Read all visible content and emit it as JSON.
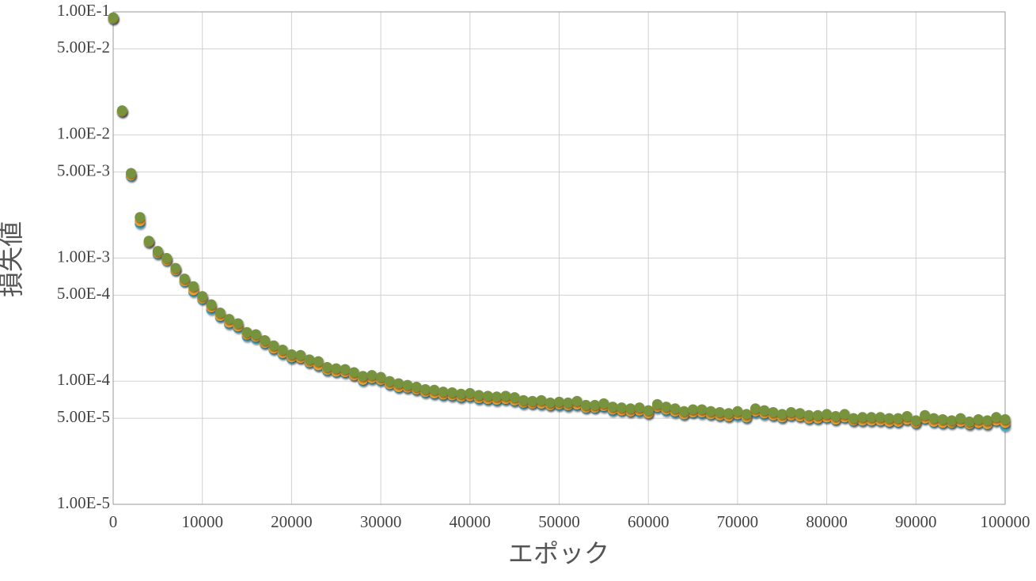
{
  "chart_data": {
    "type": "scatter",
    "xlabel": "エポック",
    "ylabel": "損失値",
    "log_y": true,
    "grid": true,
    "xlim": [
      0,
      100000
    ],
    "xticks": [
      0,
      10000,
      20000,
      30000,
      40000,
      50000,
      60000,
      70000,
      80000,
      90000,
      100000
    ],
    "ylim": [
      1e-05,
      0.1
    ],
    "yticks": [
      {
        "value": 0.1,
        "label": "1.00E-1"
      },
      {
        "value": 0.05,
        "label": "5.00E-2"
      },
      {
        "value": 0.01,
        "label": "1.00E-2"
      },
      {
        "value": 0.005,
        "label": "5.00E-3"
      },
      {
        "value": 0.001,
        "label": "1.00E-3"
      },
      {
        "value": 0.0005,
        "label": "5.00E-4"
      },
      {
        "value": 0.0001,
        "label": "1.00E-4"
      },
      {
        "value": 5e-05,
        "label": "5.00E-5"
      },
      {
        "value": 1e-05,
        "label": "1.00E-5"
      }
    ],
    "x": [
      0,
      1000,
      2000,
      3000,
      4000,
      5000,
      6000,
      7000,
      8000,
      9000,
      10000,
      11000,
      12000,
      13000,
      14000,
      15000,
      16000,
      17000,
      18000,
      19000,
      20000,
      21000,
      22000,
      23000,
      24000,
      25000,
      26000,
      27000,
      28000,
      29000,
      30000,
      31000,
      32000,
      33000,
      34000,
      35000,
      36000,
      37000,
      38000,
      39000,
      40000,
      41000,
      42000,
      43000,
      44000,
      45000,
      46000,
      47000,
      48000,
      49000,
      50000,
      51000,
      52000,
      53000,
      54000,
      55000,
      56000,
      57000,
      58000,
      59000,
      60000,
      61000,
      62000,
      63000,
      64000,
      65000,
      66000,
      67000,
      68000,
      69000,
      70000,
      71000,
      72000,
      73000,
      74000,
      75000,
      76000,
      77000,
      78000,
      79000,
      80000,
      81000,
      82000,
      83000,
      84000,
      85000,
      86000,
      87000,
      88000,
      89000,
      90000,
      91000,
      92000,
      93000,
      94000,
      95000,
      96000,
      97000,
      98000,
      99000,
      100000
    ],
    "series": [
      {
        "color": "#4bacc6",
        "values": [
          0.087,
          0.0153,
          0.0046,
          0.0019,
          0.00133,
          0.00107,
          0.00095,
          0.00079,
          0.00064,
          0.00053,
          0.00046,
          0.00038,
          0.00033,
          0.00029,
          0.00027,
          0.00023,
          0.00022,
          0.0002,
          0.00018,
          0.000165,
          0.000152,
          0.000152,
          0.00014,
          0.000132,
          0.000121,
          0.000118,
          0.000116,
          0.00011,
          0.0001,
          0.000103,
          0.0001,
          9.3e-05,
          8.8e-05,
          8.7e-05,
          8.4e-05,
          8e-05,
          7.8e-05,
          7.6e-05,
          7.5e-05,
          7.3e-05,
          7.4e-05,
          7.1e-05,
          7e-05,
          6.9e-05,
          7e-05,
          6.8e-05,
          6.5e-05,
          6.5e-05,
          6.4e-05,
          6.3e-05,
          6.3e-05,
          6.2e-05,
          6.3e-05,
          6e-05,
          6e-05,
          6.1e-05,
          5.7e-05,
          5.7e-05,
          5.6e-05,
          5.6e-05,
          5.4e-05,
          6e-05,
          5.7e-05,
          5.5e-05,
          5.3e-05,
          5.5e-05,
          5.4e-05,
          5.3e-05,
          5.2e-05,
          5.1e-05,
          5.2e-05,
          5e-05,
          5.5e-05,
          5.3e-05,
          5.2e-05,
          5e-05,
          5.2e-05,
          5.1e-05,
          4.9e-05,
          4.9e-05,
          5e-05,
          4.8e-05,
          5e-05,
          4.7e-05,
          4.7e-05,
          4.7e-05,
          4.7e-05,
          4.6e-05,
          4.6e-05,
          4.8e-05,
          4.5e-05,
          4.9e-05,
          4.6e-05,
          4.5e-05,
          4.5e-05,
          4.6e-05,
          4.4e-05,
          4.5e-05,
          4.4e-05,
          4.7e-05,
          4.3e-05
        ]
      },
      {
        "color": "#f0a030",
        "values": [
          0.088,
          0.0155,
          0.0047,
          0.002,
          0.00135,
          0.0011,
          0.00096,
          0.0008,
          0.00065,
          0.00055,
          0.00047,
          0.0004,
          0.00034,
          0.0003,
          0.00028,
          0.00024,
          0.00023,
          0.000205,
          0.000185,
          0.00017,
          0.000157,
          0.000155,
          0.000143,
          0.000135,
          0.000124,
          0.00012,
          0.000119,
          0.000112,
          0.000103,
          0.000106,
          0.000103,
          9.5e-05,
          9e-05,
          8.9e-05,
          8.6e-05,
          8.2e-05,
          8e-05,
          7.8e-05,
          7.7e-05,
          7.5e-05,
          7.6e-05,
          7.3e-05,
          7.2e-05,
          7.1e-05,
          7.2e-05,
          7e-05,
          6.7e-05,
          6.6e-05,
          6.6e-05,
          6.4e-05,
          6.5e-05,
          6.4e-05,
          6.5e-05,
          6.1e-05,
          6.1e-05,
          6.3e-05,
          5.9e-05,
          5.8e-05,
          5.7e-05,
          5.8e-05,
          5.5e-05,
          6.2e-05,
          5.9e-05,
          5.7e-05,
          5.4e-05,
          5.6e-05,
          5.6e-05,
          5.4e-05,
          5.3e-05,
          5.2e-05,
          5.4e-05,
          5.1e-05,
          5.7e-05,
          5.5e-05,
          5.3e-05,
          5.1e-05,
          5.3e-05,
          5.2e-05,
          5e-05,
          5e-05,
          5.1e-05,
          4.9e-05,
          5.1e-05,
          4.8e-05,
          4.8e-05,
          4.8e-05,
          4.8e-05,
          4.7e-05,
          4.7e-05,
          4.9e-05,
          4.6e-05,
          5e-05,
          4.7e-05,
          4.6e-05,
          4.6e-05,
          4.7e-05,
          4.5e-05,
          4.6e-05,
          4.5e-05,
          4.8e-05,
          4.6e-05
        ]
      },
      {
        "color": "#77933c",
        "values": [
          0.09,
          0.0158,
          0.0049,
          0.00215,
          0.00138,
          0.00114,
          0.001,
          0.00083,
          0.00068,
          0.00059,
          0.00049,
          0.00042,
          0.00036,
          0.00032,
          0.000295,
          0.00025,
          0.00024,
          0.000215,
          0.000195,
          0.00018,
          0.000165,
          0.000163,
          0.00015,
          0.000145,
          0.00013,
          0.000127,
          0.000125,
          0.000118,
          0.00011,
          0.000112,
          0.000108,
          0.0001,
          9.6e-05,
          9.3e-05,
          9e-05,
          8.6e-05,
          8.5e-05,
          8.2e-05,
          8.1e-05,
          7.9e-05,
          8e-05,
          7.7e-05,
          7.6e-05,
          7.5e-05,
          7.6e-05,
          7.4e-05,
          7e-05,
          6.9e-05,
          7e-05,
          6.7e-05,
          6.8e-05,
          6.7e-05,
          6.9e-05,
          6.4e-05,
          6.4e-05,
          6.6e-05,
          6.2e-05,
          6.1e-05,
          6e-05,
          6.1e-05,
          5.8e-05,
          6.5e-05,
          6.2e-05,
          6e-05,
          5.7e-05,
          5.9e-05,
          5.9e-05,
          5.7e-05,
          5.6e-05,
          5.5e-05,
          5.7e-05,
          5.4e-05,
          6e-05,
          5.8e-05,
          5.6e-05,
          5.4e-05,
          5.6e-05,
          5.5e-05,
          5.3e-05,
          5.3e-05,
          5.4e-05,
          5.2e-05,
          5.4e-05,
          5e-05,
          5.1e-05,
          5.1e-05,
          5.1e-05,
          5e-05,
          5e-05,
          5.2e-05,
          4.8e-05,
          5.3e-05,
          5e-05,
          4.9e-05,
          4.8e-05,
          5e-05,
          4.7e-05,
          4.9e-05,
          4.8e-05,
          5.1e-05,
          4.9e-05
        ]
      }
    ]
  }
}
